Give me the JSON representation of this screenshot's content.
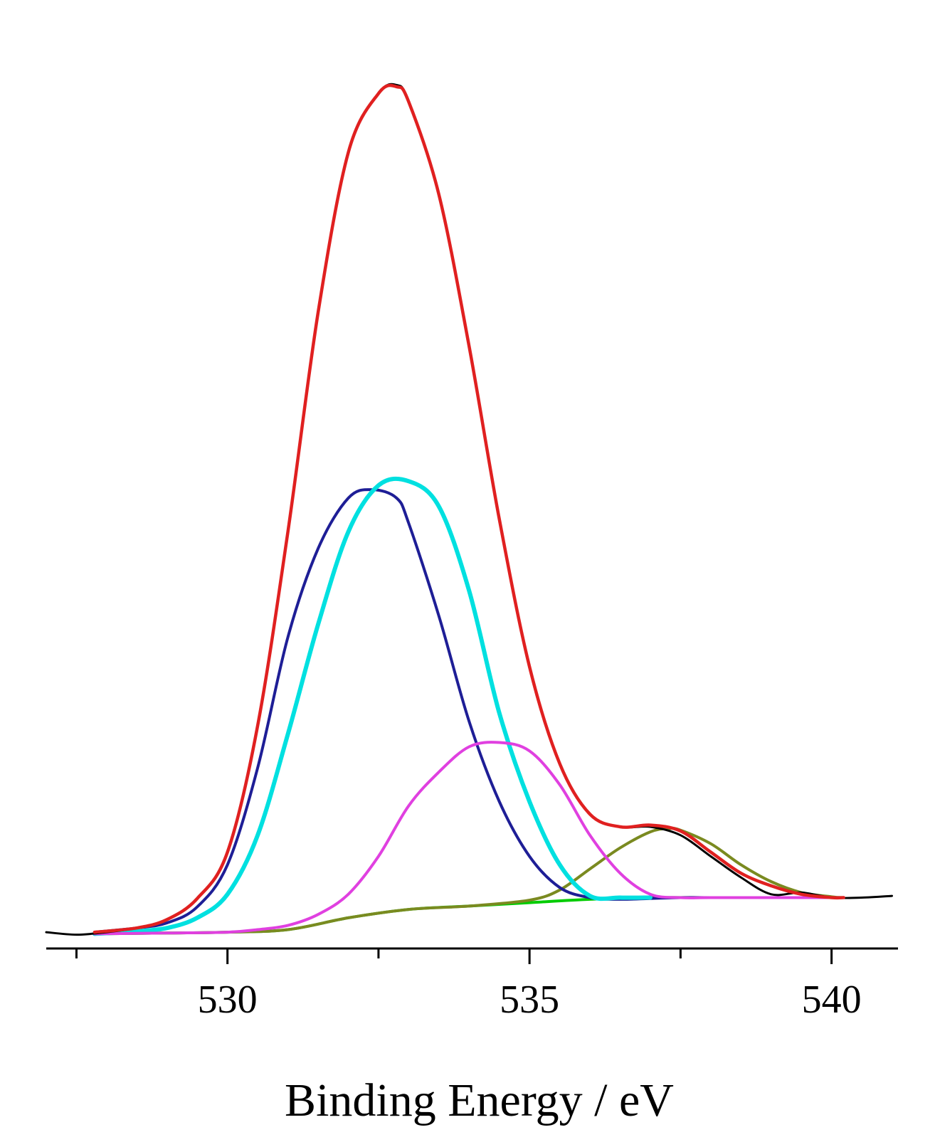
{
  "chart_data": {
    "type": "line",
    "title": "",
    "xlabel": "Binding Energy / eV",
    "ylabel": "",
    "xlim": [
      527.0,
      541.1
    ],
    "ylim": [
      0,
      104
    ],
    "x_ticks_major": [
      530,
      535,
      540
    ],
    "x_tick_labels": [
      "530",
      "535",
      "540"
    ],
    "x_ticks_minor": [
      527.5,
      532.5,
      537.5
    ],
    "y_axis_shown": false,
    "grid": false,
    "legend": "none",
    "series": [
      {
        "role": "measured-spectrum",
        "color": "#000000",
        "x": [
          527.0,
          527.5,
          528.0,
          528.5,
          529.0,
          529.5,
          530.0,
          530.5,
          531.0,
          531.5,
          532.0,
          532.5,
          532.8,
          533.0,
          533.5,
          534.0,
          534.5,
          535.0,
          535.5,
          536.0,
          536.5,
          537.0,
          537.5,
          538.0,
          538.5,
          539.0,
          539.5,
          540.0,
          540.5,
          541.0
        ],
        "values": [
          0.5,
          0.2,
          0.5,
          1.0,
          2.0,
          4.5,
          10.0,
          25.0,
          48.0,
          74.0,
          93.0,
          100.0,
          101.0,
          99.0,
          88.0,
          70.0,
          49.5,
          32.0,
          20.5,
          14.5,
          13.0,
          13.0,
          12.0,
          9.5,
          7.0,
          5.0,
          5.2,
          4.6,
          4.6,
          4.8
        ]
      },
      {
        "role": "fit-envelope",
        "color": "#e02020",
        "x": [
          527.8,
          528.5,
          529.0,
          529.5,
          530.0,
          530.5,
          531.0,
          531.5,
          532.0,
          532.5,
          532.8,
          533.0,
          533.5,
          534.0,
          534.5,
          535.0,
          535.5,
          536.0,
          536.5,
          537.0,
          537.5,
          538.0,
          538.5,
          539.0,
          539.5,
          540.0,
          540.2
        ],
        "values": [
          0.5,
          1.0,
          2.0,
          4.5,
          10.0,
          25.0,
          48.0,
          74.0,
          93.0,
          100.0,
          100.8,
          99.0,
          88.0,
          70.0,
          49.5,
          32.0,
          20.5,
          14.5,
          13.0,
          13.2,
          12.5,
          10.0,
          7.5,
          6.0,
          5.0,
          4.6,
          4.6
        ]
      },
      {
        "role": "component-1",
        "color": "#1e1e96",
        "x": [
          527.8,
          528.5,
          529.0,
          529.5,
          530.0,
          530.5,
          531.0,
          531.5,
          532.0,
          532.4,
          532.8,
          533.0,
          533.5,
          534.0,
          534.5,
          535.0,
          535.5,
          536.0,
          536.5,
          537.0,
          537.5,
          538.0
        ],
        "values": [
          0.5,
          1.0,
          1.6,
          3.5,
          8.5,
          20.0,
          35.5,
          46.0,
          52.0,
          53.0,
          52.0,
          49.0,
          38.0,
          25.5,
          16.0,
          9.5,
          5.8,
          4.6,
          4.4,
          4.5,
          4.6,
          4.6
        ]
      },
      {
        "role": "component-2",
        "color": "#00e0e0",
        "x": [
          527.8,
          528.5,
          529.0,
          529.5,
          530.0,
          530.5,
          531.0,
          531.5,
          532.0,
          532.5,
          533.0,
          533.5,
          534.0,
          534.5,
          535.0,
          535.5,
          536.0,
          536.5,
          537.0
        ],
        "values": [
          0.3,
          0.6,
          1.0,
          2.2,
          5.0,
          12.0,
          24.0,
          37.0,
          48.0,
          53.5,
          54.0,
          51.0,
          41.0,
          26.5,
          16.0,
          8.5,
          4.8,
          4.6,
          4.6
        ]
      },
      {
        "role": "component-3",
        "color": "#e040e0",
        "x": [
          527.8,
          529.0,
          530.0,
          530.5,
          531.0,
          531.5,
          532.0,
          532.5,
          533.0,
          533.5,
          534.0,
          534.5,
          535.0,
          535.5,
          536.0,
          536.5,
          537.0,
          537.5,
          538.0,
          539.0,
          540.2
        ],
        "values": [
          0.3,
          0.4,
          0.5,
          0.8,
          1.3,
          2.6,
          5.0,
          9.5,
          15.5,
          19.5,
          22.5,
          23.0,
          22.0,
          18.0,
          12.0,
          7.5,
          5.0,
          4.6,
          4.6,
          4.6,
          4.6
        ]
      },
      {
        "role": "component-4",
        "color": "#7a8a20",
        "x": [
          527.8,
          529.0,
          530.0,
          531.0,
          532.0,
          533.0,
          534.0,
          535.0,
          535.5,
          536.0,
          536.5,
          537.0,
          537.3,
          537.5,
          538.0,
          538.5,
          539.0,
          539.5,
          540.0,
          540.2
        ],
        "values": [
          0.3,
          0.4,
          0.5,
          0.8,
          2.2,
          3.2,
          3.6,
          4.3,
          5.5,
          8.0,
          10.5,
          12.4,
          12.8,
          12.6,
          11.0,
          8.5,
          6.5,
          5.2,
          4.7,
          4.6
        ]
      },
      {
        "role": "baseline",
        "color": "#00cc00",
        "x": [
          527.8,
          529.0,
          530.0,
          531.0,
          532.0,
          533.0,
          534.0,
          535.0,
          536.0,
          537.0,
          538.0,
          539.0,
          540.2
        ],
        "values": [
          0.3,
          0.4,
          0.5,
          0.8,
          2.2,
          3.2,
          3.6,
          4.0,
          4.4,
          4.6,
          4.6,
          4.6,
          4.6
        ]
      }
    ]
  }
}
